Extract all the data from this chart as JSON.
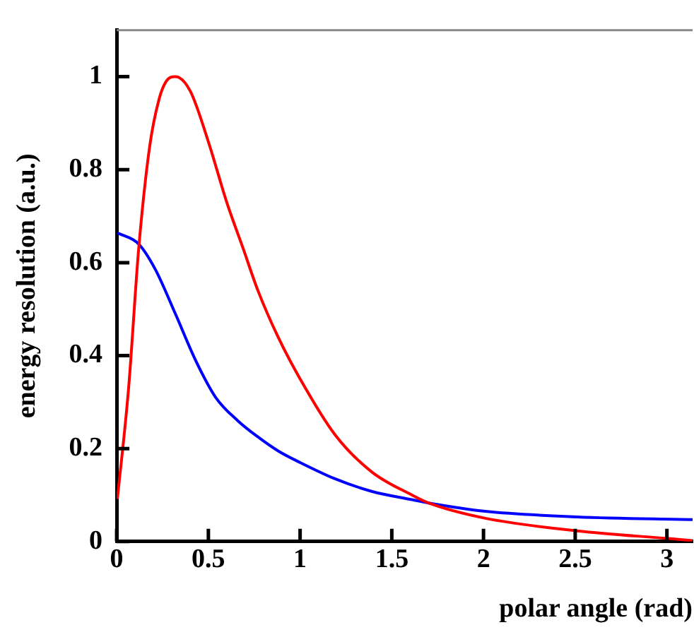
{
  "chart_data": {
    "type": "line",
    "xlabel": "polar angle (rad)",
    "ylabel": "energy resolution (a.u.)",
    "xlim": [
      0,
      3.14
    ],
    "ylim": [
      0,
      1.1
    ],
    "xticks": [
      0,
      0.5,
      1,
      1.5,
      2,
      2.5,
      3
    ],
    "yticks": [
      0,
      {
        "value": 0.2,
        "label": "0.2"
      },
      {
        "value": 0.4,
        "label": "0.4"
      },
      {
        "value": 0.6,
        "label": "0.6"
      },
      {
        "value": 0.8,
        "label": "0.8"
      },
      1
    ],
    "grid": false,
    "legend": false,
    "marker": "none",
    "line_style": "solid",
    "series": [
      {
        "color": "#ff0000",
        "x": [
          0.004,
          0.065,
          0.12,
          0.18,
          0.23,
          0.27,
          0.32,
          0.4,
          0.5,
          0.6,
          0.69,
          0.77,
          0.88,
          1.0,
          1.19,
          1.39,
          1.61,
          1.7,
          2.01,
          2.51,
          3.02,
          3.14
        ],
        "values": [
          0.092,
          0.33,
          0.63,
          0.85,
          0.95,
          0.99,
          1.0,
          0.97,
          0.86,
          0.73,
          0.63,
          0.54,
          0.44,
          0.35,
          0.23,
          0.15,
          0.1,
          0.083,
          0.05,
          0.023,
          0.006,
          0.002
        ]
      },
      {
        "color": "#0000ff",
        "x": [
          0.004,
          0.12,
          0.21,
          0.32,
          0.43,
          0.54,
          0.66,
          0.77,
          0.88,
          1.0,
          1.19,
          1.39,
          1.61,
          1.7,
          2.01,
          2.51,
          3.14
        ],
        "values": [
          0.664,
          0.64,
          0.586,
          0.49,
          0.39,
          0.31,
          0.26,
          0.225,
          0.195,
          0.17,
          0.135,
          0.108,
          0.09,
          0.083,
          0.065,
          0.053,
          0.047
        ]
      }
    ]
  }
}
